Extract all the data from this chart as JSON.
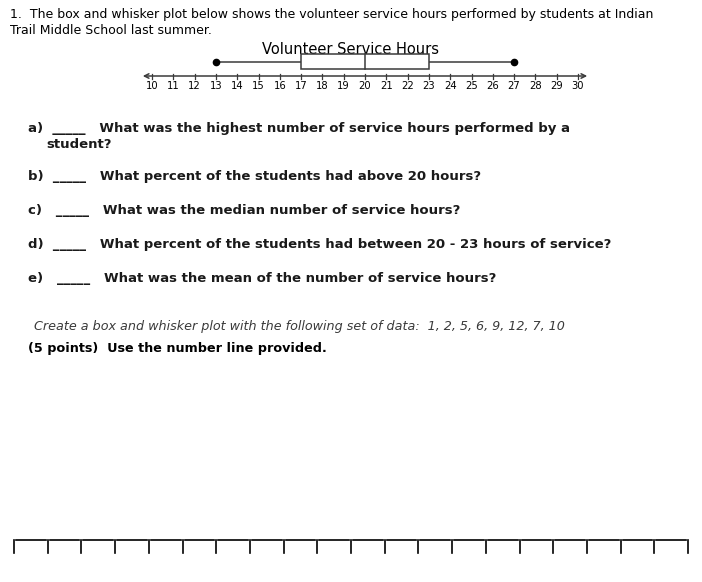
{
  "title": "Volunteer Service Hours",
  "plot_min": 13,
  "plot_q1": 17,
  "plot_median": 20,
  "plot_q3": 23,
  "plot_max": 27,
  "axis_min": 10,
  "axis_max": 30,
  "header_line1": "1.  The box and whisker plot below shows the volunteer service hours performed by students at Indian",
  "header_line2": "Trail Middle School last summer.",
  "qa": "a)  _____   What was the highest number of service hours performed by a",
  "qa2": "        student?",
  "qb": "b)  _____   What percent of the students had above 20 hours?",
  "qc": "c)   _____   What was the median number of service hours?",
  "qd": "d)  _____   What percent of the students had between 20 - 23 hours of service?",
  "qe": "e)   _____   What was the mean of the number of service hours?",
  "create_text": "Create a box and whisker plot with the following set of data:  1, 2, 5, 6, 9, 12, 7, 10",
  "points_text": "(5 points)  Use the number line provided.",
  "bg_color": "#ffffff",
  "text_color": "#000000",
  "line_color": "#3a3a3a",
  "q_color": "#1a1a1a"
}
